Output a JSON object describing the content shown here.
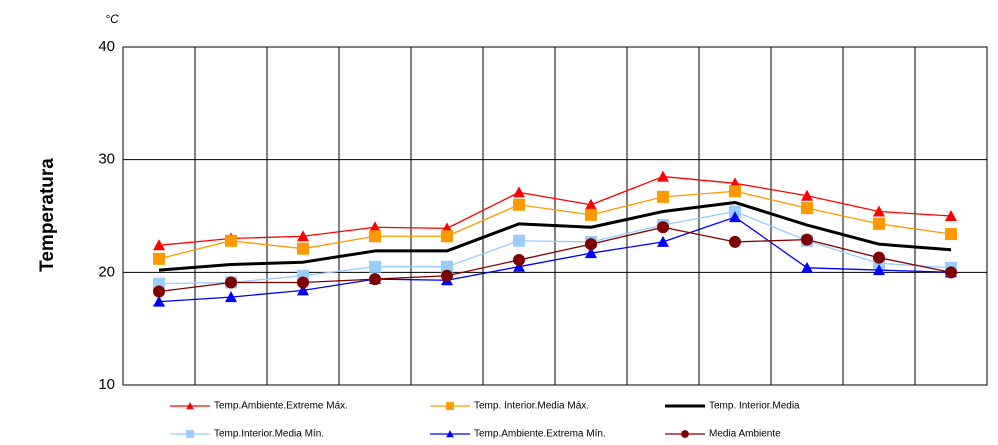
{
  "chart_data": {
    "type": "line",
    "y_label": "Temperatura",
    "unit": "°C",
    "categories": [
      null,
      null,
      null,
      null,
      null,
      null,
      null,
      null,
      null,
      null,
      null,
      null
    ],
    "ylim": [
      10,
      40
    ],
    "yticks": [
      10,
      20,
      30,
      40
    ],
    "grid": true,
    "series": [
      {
        "name": "Temp.Ambiente.Extreme Máx.",
        "color": "#ff0000",
        "marker": "triangle",
        "values": [
          22.4,
          23.0,
          23.2,
          24.0,
          23.9,
          27.1,
          26.0,
          28.5,
          27.9,
          26.8,
          25.4,
          25.0
        ]
      },
      {
        "name": "Temp. Interior.Media Máx.",
        "color": "#ff9900",
        "marker": "square",
        "values": [
          21.2,
          22.8,
          22.1,
          23.2,
          23.2,
          26.0,
          25.1,
          26.7,
          27.2,
          25.7,
          24.3,
          23.4
        ]
      },
      {
        "name": "Temp. Interior.Media",
        "color": "#000000",
        "marker": "none",
        "values": [
          20.2,
          20.7,
          20.9,
          21.9,
          21.9,
          24.3,
          24.0,
          25.4,
          26.2,
          24.2,
          22.5,
          22.0
        ]
      },
      {
        "name": "Temp.Interior.Media Mín.",
        "color": "#99ccff",
        "marker": "square",
        "values": [
          19.0,
          19.1,
          19.7,
          20.5,
          20.5,
          22.8,
          22.7,
          24.2,
          25.4,
          22.8,
          20.8,
          20.4
        ]
      },
      {
        "name": "Temp.Ambiente.Extrema Mín.",
        "color": "#0000ff",
        "marker": "triangle",
        "values": [
          17.4,
          17.8,
          18.4,
          19.4,
          19.3,
          20.5,
          21.7,
          22.7,
          24.9,
          20.4,
          20.2,
          20.0
        ]
      },
      {
        "name": "Media Ambiente",
        "color": "#800000",
        "marker": "circle",
        "values": [
          18.3,
          19.1,
          19.1,
          19.4,
          19.7,
          21.1,
          22.5,
          24.0,
          22.7,
          22.9,
          21.3,
          20.0
        ]
      }
    ]
  }
}
